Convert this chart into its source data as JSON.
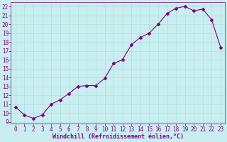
{
  "x": [
    0,
    1,
    2,
    3,
    4,
    5,
    6,
    7,
    8,
    9,
    10,
    11,
    12,
    13,
    14,
    15,
    16,
    17,
    18,
    19,
    20,
    21,
    22,
    23
  ],
  "y": [
    10.7,
    9.8,
    9.4,
    9.8,
    11.0,
    11.5,
    12.2,
    13.0,
    13.1,
    13.1,
    13.9,
    15.6,
    16.0,
    17.7,
    18.5,
    19.0,
    20.0,
    21.2,
    21.8,
    22.0,
    21.5,
    21.7,
    20.5,
    17.4
  ],
  "line_color": "#800080",
  "marker": "D",
  "marker_size": 2.0,
  "line_width": 0.8,
  "bg_color": "#c8eef0",
  "grid_color": "#aadddd",
  "xlabel": "Windchill (Refroidissement éolien,°C)",
  "xlabel_color": "#800080",
  "tick_color": "#800080",
  "xlim": [
    -0.5,
    23.5
  ],
  "ylim": [
    8.8,
    22.5
  ],
  "yticks": [
    9,
    10,
    11,
    12,
    13,
    14,
    15,
    16,
    17,
    18,
    19,
    20,
    21,
    22
  ],
  "xticks": [
    0,
    1,
    2,
    3,
    4,
    5,
    6,
    7,
    8,
    9,
    10,
    11,
    12,
    13,
    14,
    15,
    16,
    17,
    18,
    19,
    20,
    21,
    22,
    23
  ],
  "tick_fontsize": 5.5,
  "xlabel_fontsize": 6.0,
  "xlabel_fontweight": "bold"
}
